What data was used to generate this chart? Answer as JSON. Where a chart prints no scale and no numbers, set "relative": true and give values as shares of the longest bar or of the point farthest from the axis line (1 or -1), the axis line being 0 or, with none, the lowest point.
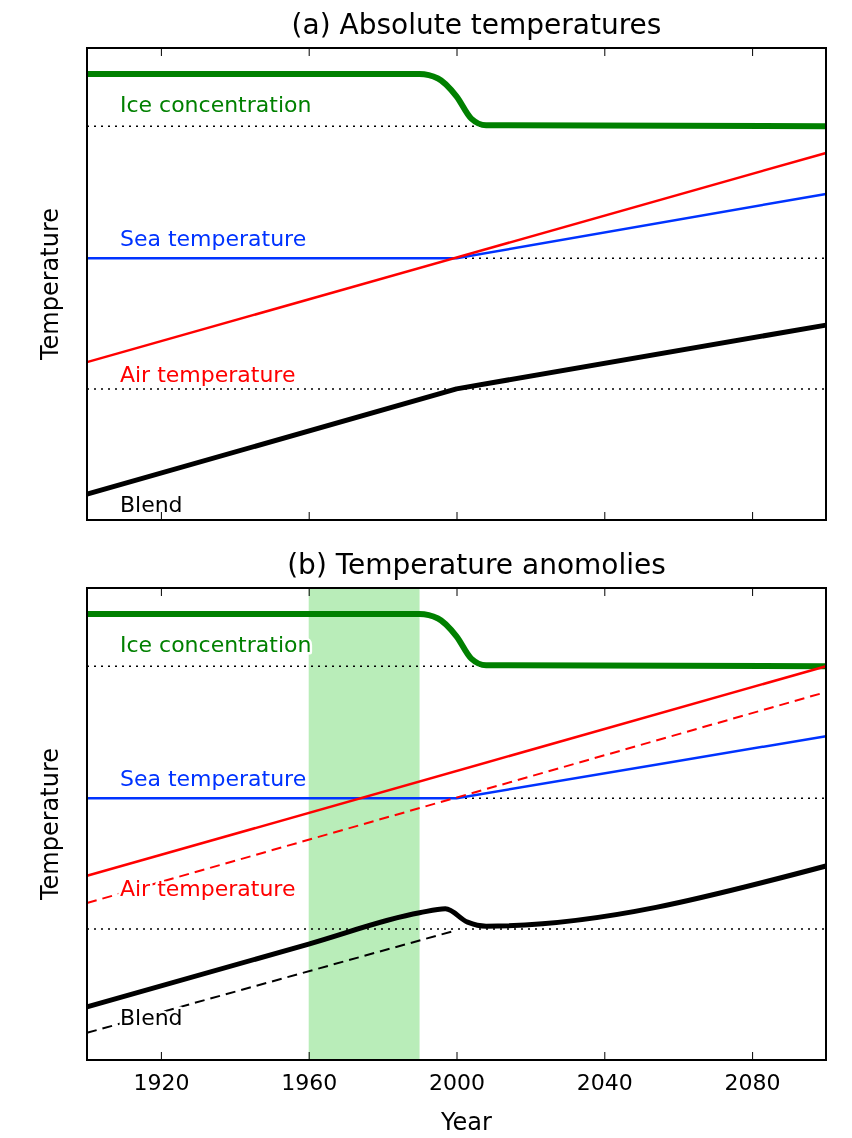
{
  "chart_data": [
    {
      "type": "line",
      "title": "(a) Absolute temperatures",
      "ylabel": "Temperature",
      "relative": true,
      "xlim": [
        1900,
        2100
      ],
      "xticks": [
        1920,
        1960,
        2000,
        2040,
        2080
      ],
      "tick_labels": false,
      "series": [
        {
          "name": "Ice concentration",
          "color": "#008000",
          "x": [
            1900,
            1990,
            1995,
            2000,
            2004,
            2008,
            2100
          ],
          "values": [
            1,
            1,
            0.99,
            0.95,
            0.9,
            0.885,
            0.883
          ]
        },
        {
          "name": "Sea temperature",
          "color": "#0033ff",
          "x": [
            1900,
            2000,
            2100
          ],
          "values": [
            0.587,
            0.587,
            0.731
          ]
        },
        {
          "name": "Air temperature",
          "color": "#ff0000",
          "x": [
            1900,
            2100
          ],
          "values": [
            0.354,
            0.823
          ]
        },
        {
          "name": "Blend",
          "color": "#000000",
          "x": [
            1900,
            2000,
            2100
          ],
          "values": [
            0.058,
            0.294,
            0.437
          ]
        }
      ],
      "ref_lines": [
        {
          "axis": "y",
          "value": 0.883,
          "color": "#000000",
          "line_style": "dotted"
        },
        {
          "axis": "y",
          "value": 0.587,
          "color": "#000000",
          "line_style": "dotted"
        },
        {
          "axis": "y",
          "value": 0.294,
          "color": "#000000",
          "line_style": "dotted"
        }
      ]
    },
    {
      "type": "line",
      "title": "(b) Temperature anomolies",
      "xlabel": "Year",
      "ylabel": "Temperature",
      "relative": true,
      "xlim": [
        1900,
        2100
      ],
      "xticks": [
        1920,
        1960,
        2000,
        2040,
        2080
      ],
      "tick_labels": "x",
      "series": [
        {
          "name": "Ice concentration",
          "color": "#008000",
          "x": [
            1900,
            1990,
            1995,
            2000,
            2004,
            2008,
            2100
          ],
          "values": [
            1,
            1,
            0.99,
            0.95,
            0.9,
            0.885,
            0.883
          ]
        },
        {
          "name": "Sea temperature",
          "color": "#0033ff",
          "x": [
            1900,
            2000,
            2100
          ],
          "values": [
            0.587,
            0.587,
            0.726
          ]
        },
        {
          "name": "Air temperature",
          "color": "#ff0000",
          "x": [
            1900,
            2100
          ],
          "values": [
            0.413,
            0.883
          ]
        },
        {
          "name": "Blend",
          "color": "#000000",
          "x": [
            1900,
            1960,
            1990,
            1997,
            2003,
            2008,
            2100
          ],
          "values": [
            0.119,
            0.26,
            0.33,
            0.339,
            0.309,
            0.3,
            0.435
          ]
        },
        {
          "color": "#ff0000",
          "line_style": "dashed",
          "x": [
            1900,
            2100
          ],
          "values": [
            0.352,
            0.825
          ]
        },
        {
          "color": "#000000",
          "line_style": "dashed",
          "x": [
            1900,
            2000
          ],
          "values": [
            0.061,
            0.291
          ]
        }
      ],
      "ref_lines": [
        {
          "axis": "y",
          "value": 0.883,
          "color": "#000000",
          "line_style": "dotted"
        },
        {
          "axis": "y",
          "value": 0.587,
          "color": "#000000",
          "line_style": "dotted"
        },
        {
          "axis": "y",
          "value": 0.294,
          "color": "#000000",
          "line_style": "dotted"
        }
      ],
      "bands": [
        {
          "axis": "x",
          "from": 1960,
          "to": 1990,
          "color": "#b9edb9"
        }
      ]
    }
  ]
}
